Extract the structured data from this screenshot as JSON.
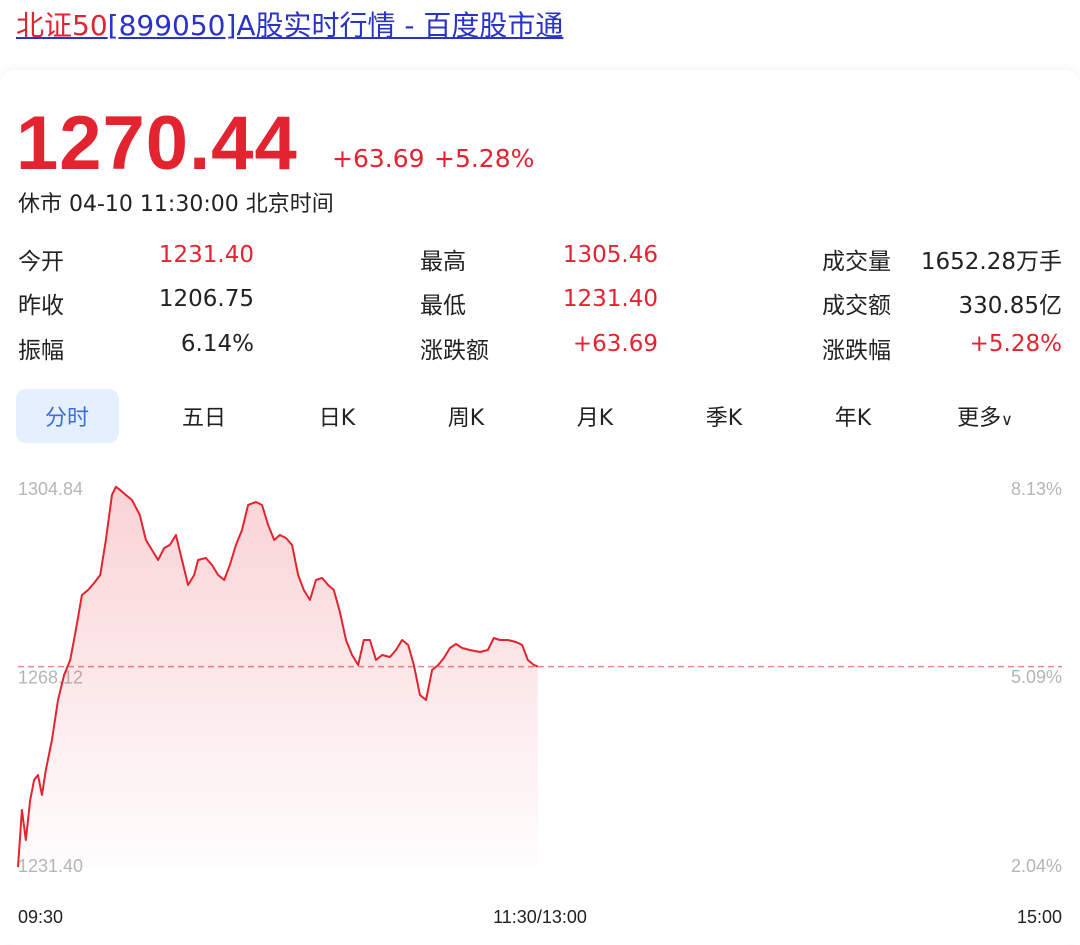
{
  "header": {
    "name": "北证50",
    "title": "[899050]A股实时行情 - 百度股市通"
  },
  "quote": {
    "price": "1270.44",
    "change": "+63.69",
    "change_pct": "+5.28%",
    "status": "休市 04-10 11:30:00 北京时间"
  },
  "stats": [
    [
      "今开",
      "1231.40",
      "最高",
      "1305.46",
      "成交量",
      "1652.28万手"
    ],
    [
      "昨收",
      "1206.75",
      "最低",
      "1231.40",
      "成交额",
      "330.85亿"
    ],
    [
      "振幅",
      "6.14%",
      "涨跌额",
      "+63.69",
      "涨跌幅",
      "+5.28%"
    ]
  ],
  "tabs": [
    "分时",
    "五日",
    "日K",
    "周K",
    "月K",
    "季K",
    "年K",
    "更多"
  ],
  "chart_data": {
    "type": "line",
    "x": [
      0,
      0.9,
      1.8,
      2.8,
      3.7,
      4.6,
      5.5,
      6.4,
      7.8,
      9.2,
      10.6,
      12.0,
      13.3,
      14.7,
      16.1,
      17.5,
      18.9,
      20.2,
      21.6,
      22.5,
      23.4,
      24.8,
      26.2,
      28.0,
      29.4,
      30.8,
      32.2,
      33.6,
      34.9,
      36.3,
      37.7,
      39.1,
      40.5,
      41.4,
      43.2,
      44.6,
      46.0,
      47.4,
      48.7,
      50.1,
      51.5,
      52.9,
      54.7,
      56.1,
      57.5,
      58.9,
      60.2,
      61.6,
      63.0,
      64.4,
      65.7,
      67.1,
      68.5,
      69.9,
      71.3,
      72.6,
      74.0,
      75.4,
      76.8,
      78.2,
      79.5,
      80.9,
      82.3,
      83.7,
      85.5,
      86.9,
      88.3,
      89.7,
      91.0,
      92.4,
      93.8,
      95.2,
      96.6,
      97.9,
      99.3,
      100.7,
      102.1,
      103.9,
      106.2,
      108.0,
      109.4,
      110.8,
      112.6,
      114.5,
      115.9,
      117.2,
      118.6,
      119.5
    ],
    "series": [
      {
        "color": "#e3232f",
        "values": [
          1231.4,
          1242.5,
          1236.66,
          1244.45,
          1248.35,
          1249.32,
          1245.43,
          1250.3,
          1256.14,
          1263.93,
          1268.8,
          1271.72,
          1277.57,
          1284.39,
          1285.36,
          1286.72,
          1288.28,
          1295.1,
          1303.87,
          1305.46,
          1304.9,
          1303.87,
          1302.89,
          1299.97,
          1295.1,
          1293.15,
          1291.2,
          1293.54,
          1294.13,
          1296.07,
          1291.2,
          1286.33,
          1288.28,
          1291.2,
          1291.59,
          1290.23,
          1288.28,
          1287.31,
          1290.23,
          1294.13,
          1297.05,
          1301.92,
          1302.5,
          1301.92,
          1298.02,
          1295.1,
          1296.07,
          1295.49,
          1294.13,
          1288.28,
          1285.36,
          1283.41,
          1287.31,
          1287.7,
          1286.33,
          1285.36,
          1281.07,
          1275.62,
          1272.7,
          1270.75,
          1275.62,
          1275.62,
          1271.72,
          1272.7,
          1272.31,
          1273.67,
          1275.62,
          1274.65,
          1270.75,
          1264.91,
          1263.93,
          1269.78,
          1270.75,
          1272.11,
          1274.06,
          1274.84,
          1274.06,
          1273.67,
          1273.28,
          1273.67,
          1276.01,
          1275.62,
          1275.62,
          1275.23,
          1274.65,
          1271.72,
          1270.75,
          1270.44
        ]
      }
    ],
    "xlim": [
      0,
      240
    ],
    "xticks": [
      {
        "value": 0,
        "label": "09:30"
      },
      {
        "value": 120,
        "label": "11:30/13:00"
      },
      {
        "value": 240,
        "label": "15:00"
      }
    ],
    "ylim": [
      1231.4,
      1304.84
    ],
    "yticks": [
      {
        "value": 1231.4,
        "label": "1231.40"
      },
      1268.12,
      1304.84
    ],
    "y2lim": [
      2.04,
      8.13
    ],
    "y2ticks": [
      {
        "value": 2.04,
        "label": "2.04%"
      },
      {
        "value": 5.09,
        "label": "5.09%"
      },
      {
        "value": 8.13,
        "label": "8.13%"
      }
    ],
    "reference_line": 1270.44
  }
}
